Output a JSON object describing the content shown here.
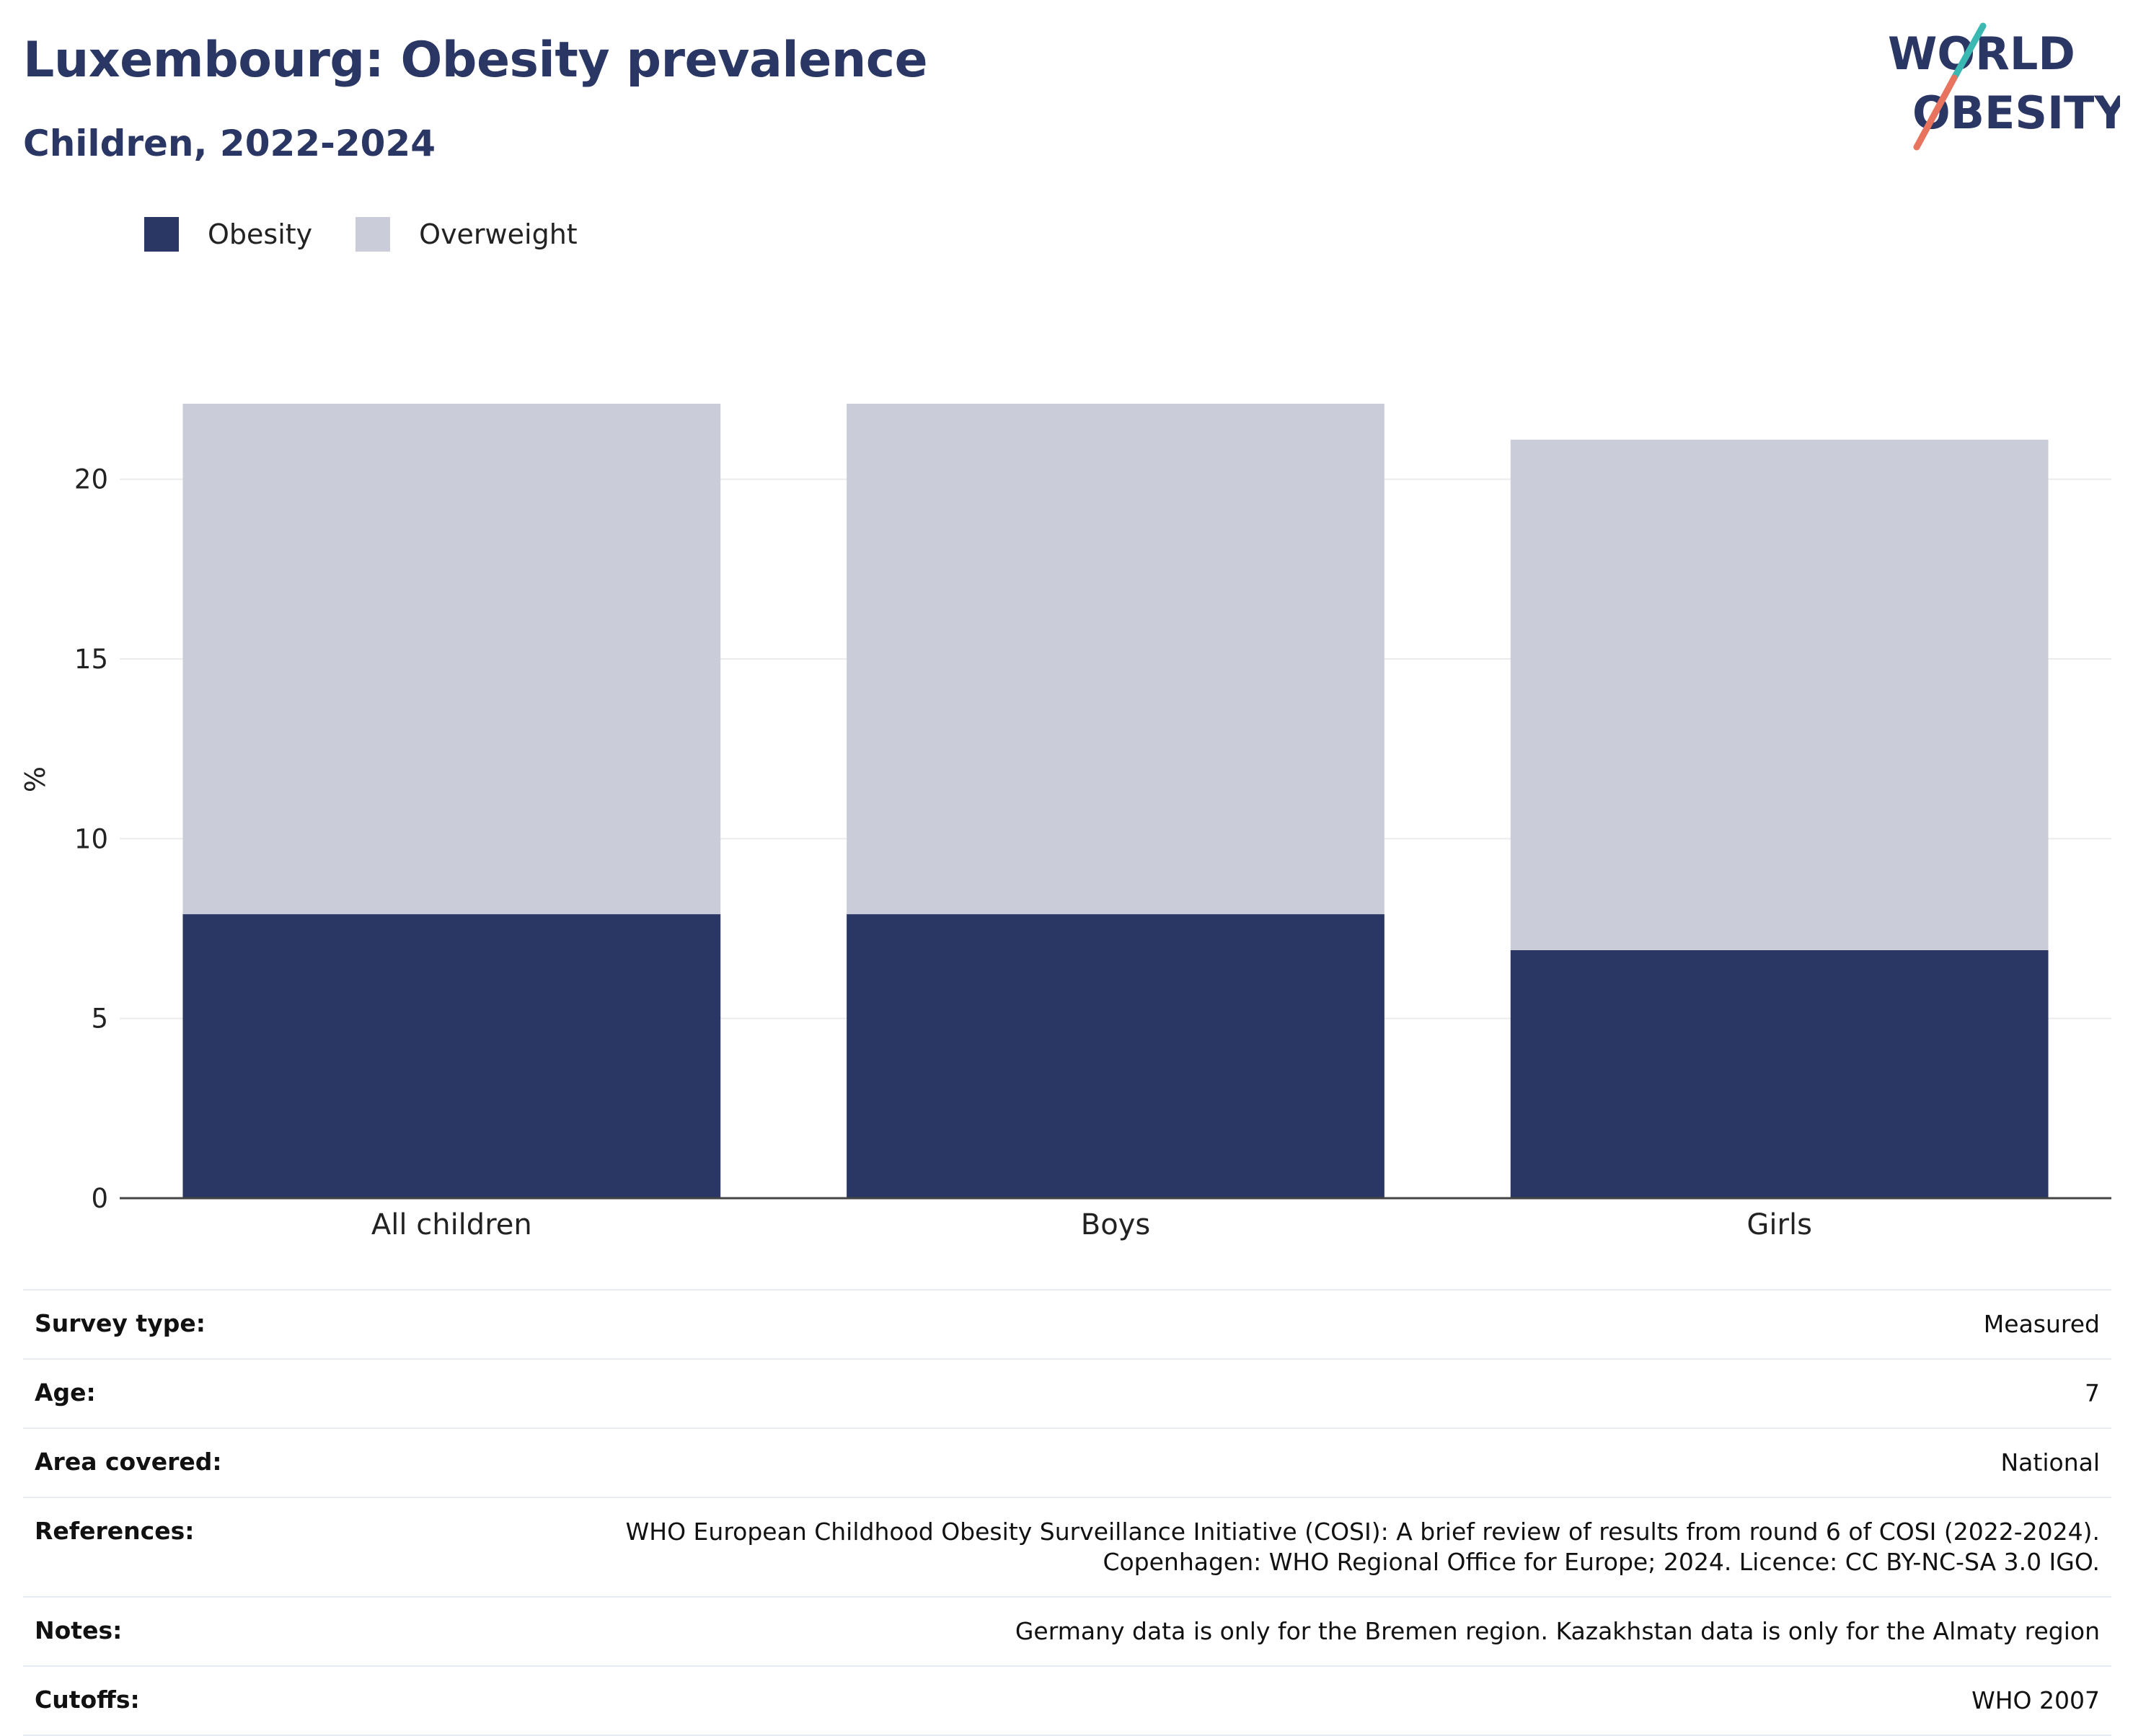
{
  "header": {
    "title": "Luxembourg: Obesity prevalence",
    "subtitle": "Children, 2022-2024"
  },
  "logo": {
    "line1": "WORLD",
    "line2": "OBESITY",
    "colors": {
      "text": "#2a3663",
      "slash_top": "#3bb8b2",
      "slash_bottom": "#e8735f"
    }
  },
  "legend": [
    {
      "label": "Obesity",
      "color": "#2a3663"
    },
    {
      "label": "Overweight",
      "color": "#cacdd9"
    }
  ],
  "chart_data": {
    "type": "bar",
    "stacked": true,
    "categories": [
      "All children",
      "Boys",
      "Girls"
    ],
    "series": [
      {
        "name": "Obesity",
        "values": [
          7.9,
          7.9,
          6.9
        ],
        "color": "#2a3663"
      },
      {
        "name": "Overweight",
        "values": [
          14.2,
          14.2,
          14.2
        ],
        "color": "#cacdd9"
      }
    ],
    "ylabel": "%",
    "xlabel": "",
    "ylim": [
      0,
      22.1
    ],
    "yticks": [
      0,
      5,
      10,
      15,
      20
    ],
    "grid": true,
    "legend_position": "top-left"
  },
  "metadata": [
    {
      "key": "Survey type:",
      "value": [
        "Measured"
      ]
    },
    {
      "key": "Age:",
      "value": [
        "7"
      ]
    },
    {
      "key": "Area covered:",
      "value": [
        "National"
      ]
    },
    {
      "key": "References:",
      "value": [
        "WHO European Childhood Obesity Surveillance Initiative (COSI): A brief review of results from round 6 of COSI (2022-2024).",
        "Copenhagen: WHO Regional Office for Europe; 2024. Licence: CC BY-NC-SA 3.0 IGO."
      ]
    },
    {
      "key": "Notes:",
      "value": [
        "Germany data is only for the Bremen region. Kazakhstan data is only for the Almaty region"
      ]
    },
    {
      "key": "Cutoffs:",
      "value": [
        "WHO 2007"
      ]
    }
  ]
}
